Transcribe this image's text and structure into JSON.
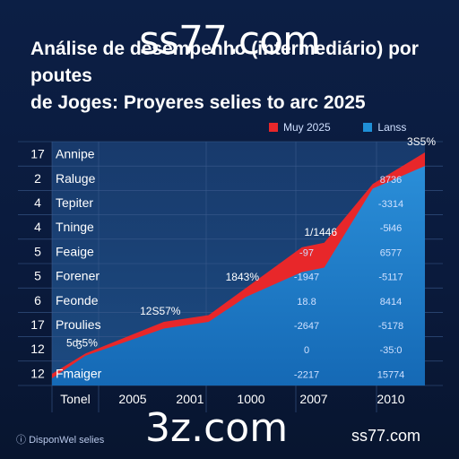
{
  "watermark_top": "ss77.com",
  "watermark_bottom": "3z.com",
  "footer_right": "ss77.com",
  "footer_left": "DisponWel selies",
  "title_line1": "Análise de desempenho (intermediário) por poutes",
  "title_line2": "de Joges: Proyeres selies to arc 2025",
  "colors": {
    "background": "#0b1d42",
    "red_series": "#e8272a",
    "blue_series": "#1f8fd6",
    "grid": "#3a5a8c"
  },
  "chart_data": {
    "type": "area",
    "title": "Análise de desempenho (intermediário) por poutes de Joges: Proyeres selies to arc 2025",
    "legend": {
      "placement": "top-right",
      "entries": [
        "Muy 2025",
        "Lanss"
      ]
    },
    "rows": [
      {
        "num": "17",
        "label": "Annipe",
        "value": ""
      },
      {
        "num": "2",
        "label": "Raluge",
        "value": "8736"
      },
      {
        "num": "4",
        "label": "Tepiter",
        "value": "-3314"
      },
      {
        "num": "4",
        "label": "Tninge",
        "value": "-5ł46"
      },
      {
        "num": "5",
        "label": "Feaige",
        "value": "6577"
      },
      {
        "num": "5",
        "label": "Forener",
        "value": "-5117"
      },
      {
        "num": "6",
        "label": "Feonde",
        "value": "8414"
      },
      {
        "num": "17",
        "label": "Proulies",
        "value": "-5178"
      },
      {
        "num": "12",
        "label": "",
        "value": "-35:0"
      },
      {
        "num": "12",
        "label": "Fmaiger",
        "value": "15774"
      }
    ],
    "x_ticks": [
      "Tonel",
      "2005",
      "2001",
      "1000",
      "2007",
      "2010"
    ],
    "series": [
      {
        "name": "Muy 2025",
        "x": [
          0,
          0.09,
          0.3,
          0.42,
          0.52,
          0.67,
          0.73,
          0.86,
          1.0
        ],
        "y": [
          0.02,
          0.11,
          0.25,
          0.28,
          0.4,
          0.58,
          0.6,
          0.86,
          1.0
        ]
      },
      {
        "name": "Lanss",
        "x": [
          0,
          0.09,
          0.3,
          0.42,
          0.52,
          0.67,
          0.73,
          0.86,
          1.0
        ],
        "y": [
          0.0,
          0.1,
          0.22,
          0.25,
          0.36,
          0.47,
          0.49,
          0.84,
          0.94
        ]
      }
    ],
    "annotations": [
      {
        "text": "5ʤ5%",
        "series": 0,
        "index": 1
      },
      {
        "text": "12S57%",
        "series": 0,
        "index": 2
      },
      {
        "text": "1843%",
        "series": 0,
        "index": 4
      },
      {
        "text": "1/1446",
        "series": 0,
        "index": 6
      },
      {
        "text": "3S5%",
        "series": 0,
        "index": 8
      }
    ],
    "mid_values": [
      "-97",
      "-1947",
      "18.8",
      "-2647",
      "0",
      "-2217"
    ],
    "grid": true
  }
}
